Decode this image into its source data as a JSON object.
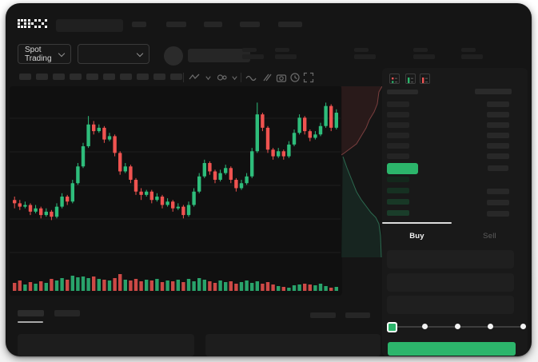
{
  "brand": {
    "name": "OKX"
  },
  "header": {
    "market_selector": "Spot Trading",
    "nav_items": 5,
    "ticker_stats": 5
  },
  "toolbar": {
    "timeframe_buttons": 10,
    "icons": [
      "line-tools-icon",
      "chevron-down-icon",
      "indicators-icon",
      "chevron-down-icon",
      "wave-icon",
      "compare-icon",
      "camera-icon",
      "history-icon",
      "fullscreen-icon"
    ]
  },
  "order_book": {
    "view_icons": [
      "book-combined-icon",
      "book-bids-icon",
      "book-asks-icon"
    ],
    "rows": [
      {
        "kind": "header"
      },
      {
        "kind": "ask",
        "amount": true
      },
      {
        "kind": "ask",
        "amount": true
      },
      {
        "kind": "ask",
        "amount": true
      },
      {
        "kind": "ask",
        "amount": true
      },
      {
        "kind": "ask",
        "amount": true
      },
      {
        "kind": "ask",
        "amount": true
      },
      {
        "kind": "last",
        "amount": true
      },
      {
        "kind": "bid",
        "shade": 0,
        "amount": false
      },
      {
        "kind": "bid",
        "shade": 1,
        "amount": true
      },
      {
        "kind": "bid",
        "shade": 2,
        "amount": true
      },
      {
        "kind": "bid",
        "shade": 3,
        "amount": true
      }
    ]
  },
  "trade_panel": {
    "buy_label": "Buy",
    "sell_label": "Sell",
    "inputs": 3,
    "slider": {
      "steps": 5,
      "active_index": 0
    }
  },
  "colors": {
    "green": "#2cb56b",
    "red": "#ee5454",
    "candle_green": "#2ebd7b",
    "candle_red": "#ef5350",
    "bid_shades": [
      "#13281c",
      "#163122",
      "#183826",
      "#1a3d2a"
    ],
    "ask_bar": "#242424",
    "amount_bar": "#282828",
    "grid": "#1e1e1e",
    "depth_red_fill": "rgba(224,80,80,0.10)",
    "depth_red_line": "rgba(235,110,110,0.45)",
    "depth_green_fill": "rgba(46,189,133,0.10)",
    "depth_green_line": "rgba(70,200,145,0.45)"
  },
  "chart_data": {
    "type": "candlestick",
    "title": "",
    "xlabel": "",
    "ylabel": "",
    "axis_labels_visible": false,
    "value_scale": "relative 0-100 (no axis labels shown in UI)",
    "candles": [
      [
        38,
        40,
        33,
        36
      ],
      [
        36,
        38,
        32,
        34
      ],
      [
        34,
        37,
        33,
        35
      ],
      [
        35,
        36,
        29,
        31
      ],
      [
        31,
        35,
        30,
        33
      ],
      [
        33,
        34,
        27,
        29
      ],
      [
        29,
        33,
        28,
        31
      ],
      [
        31,
        32,
        26,
        28
      ],
      [
        28,
        36,
        27,
        34
      ],
      [
        34,
        42,
        33,
        40
      ],
      [
        40,
        41,
        35,
        37
      ],
      [
        37,
        50,
        36,
        48
      ],
      [
        48,
        60,
        47,
        58
      ],
      [
        58,
        72,
        57,
        70
      ],
      [
        70,
        88,
        69,
        83
      ],
      [
        83,
        85,
        77,
        79
      ],
      [
        79,
        83,
        78,
        81
      ],
      [
        81,
        82,
        72,
        74
      ],
      [
        74,
        78,
        73,
        76
      ],
      [
        76,
        77,
        64,
        66
      ],
      [
        66,
        67,
        53,
        55
      ],
      [
        55,
        60,
        54,
        58
      ],
      [
        58,
        59,
        48,
        50
      ],
      [
        50,
        51,
        41,
        43
      ],
      [
        43,
        45,
        38,
        41
      ],
      [
        41,
        44,
        40,
        43
      ],
      [
        43,
        44,
        36,
        38
      ],
      [
        38,
        42,
        37,
        40
      ],
      [
        40,
        41,
        33,
        35
      ],
      [
        35,
        39,
        34,
        37
      ],
      [
        37,
        38,
        31,
        33
      ],
      [
        33,
        36,
        32,
        34
      ],
      [
        34,
        35,
        27,
        29
      ],
      [
        29,
        37,
        28,
        35
      ],
      [
        35,
        45,
        34,
        43
      ],
      [
        43,
        54,
        42,
        52
      ],
      [
        52,
        62,
        51,
        60
      ],
      [
        60,
        61,
        53,
        55
      ],
      [
        55,
        56,
        48,
        50
      ],
      [
        50,
        56,
        49,
        54
      ],
      [
        54,
        59,
        53,
        57
      ],
      [
        57,
        58,
        48,
        50
      ],
      [
        50,
        51,
        43,
        45
      ],
      [
        45,
        50,
        44,
        48
      ],
      [
        48,
        54,
        47,
        52
      ],
      [
        52,
        69,
        51,
        67
      ],
      [
        67,
        96,
        66,
        89
      ],
      [
        89,
        90,
        79,
        81
      ],
      [
        81,
        82,
        66,
        68
      ],
      [
        68,
        69,
        62,
        64
      ],
      [
        64,
        69,
        63,
        67
      ],
      [
        67,
        68,
        62,
        64
      ],
      [
        64,
        73,
        63,
        71
      ],
      [
        71,
        80,
        70,
        78
      ],
      [
        78,
        89,
        77,
        87
      ],
      [
        87,
        88,
        77,
        79
      ],
      [
        79,
        80,
        73,
        75
      ],
      [
        75,
        79,
        74,
        77
      ],
      [
        77,
        84,
        76,
        82
      ],
      [
        82,
        96,
        81,
        94
      ],
      [
        94,
        95,
        79,
        81
      ],
      [
        81,
        92,
        80,
        90
      ]
    ],
    "volumes": [
      10,
      13,
      8,
      11,
      9,
      12,
      10,
      15,
      13,
      16,
      14,
      19,
      17,
      18,
      16,
      18,
      15,
      14,
      13,
      16,
      21,
      14,
      13,
      15,
      12,
      14,
      13,
      15,
      11,
      13,
      12,
      14,
      11,
      15,
      12,
      16,
      14,
      12,
      10,
      13,
      11,
      12,
      9,
      11,
      13,
      10,
      12,
      9,
      11,
      8,
      6,
      5,
      4,
      7,
      8,
      9,
      8,
      7,
      9,
      6,
      4,
      5
    ],
    "depth": {
      "asks_line": [
        [
          51,
          0
        ],
        [
          47,
          7
        ],
        [
          45,
          22
        ],
        [
          41,
          32
        ],
        [
          35,
          42
        ],
        [
          31,
          52
        ],
        [
          25,
          62
        ],
        [
          19,
          72
        ],
        [
          11,
          78
        ],
        [
          3,
          84
        ],
        [
          0,
          86
        ]
      ],
      "bids_line": [
        [
          2,
          88
        ],
        [
          7,
          102
        ],
        [
          13,
          117
        ],
        [
          19,
          132
        ],
        [
          25,
          142
        ],
        [
          31,
          150
        ],
        [
          37,
          158
        ],
        [
          43,
          164
        ],
        [
          47,
          172
        ],
        [
          49,
          187
        ],
        [
          50,
          214
        ]
      ]
    },
    "grid_on": true,
    "legend": "none"
  }
}
